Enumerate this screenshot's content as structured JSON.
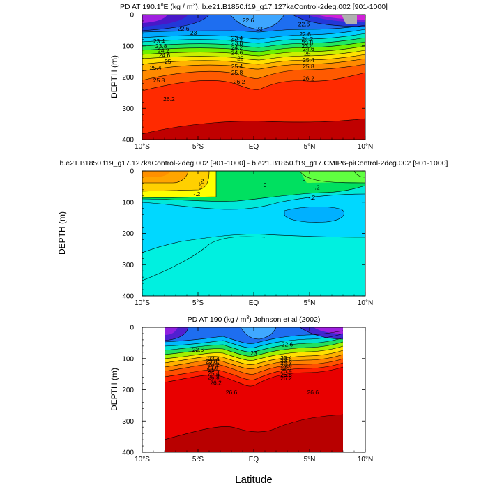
{
  "figure": {
    "xlabel_bottom": "Latitude"
  },
  "chart_data": [
    {
      "type": "heatmap",
      "title_prefix": "PD AT 190.1",
      "title_superscript_deg": "o",
      "title_suffix": "E (kg / m",
      "title_sup_exp": "3",
      "title_tail": "), b.e21.B1850.f19_g17.127kaControl-2deg.002 [901-1000]",
      "ylabel": "DEPTH (m)",
      "xlim": [
        -10,
        10
      ],
      "ylim": [
        0,
        400
      ],
      "y_inverted": true,
      "xticks": [
        -10,
        -5,
        0,
        5,
        10
      ],
      "xtick_labels": [
        "10°S",
        "5°S",
        "EQ",
        "5°N",
        "10°N"
      ],
      "yticks": [
        0,
        100,
        200,
        300,
        400
      ],
      "ytick_labels": [
        "0",
        "100",
        "200",
        "300",
        "400"
      ],
      "contour_levels": [
        20.8,
        21.2,
        21.6,
        22.0,
        22.6,
        23.0,
        23.4,
        23.8,
        24.2,
        24.6,
        25.0,
        25.4,
        25.8,
        26.2,
        26.6
      ],
      "contour_labels": [
        {
          "lat": -0.5,
          "depth": 18,
          "text": "22.6"
        },
        {
          "lat": 0.5,
          "depth": 45,
          "text": "23"
        },
        {
          "lat": -6.3,
          "depth": 45,
          "text": "22.6"
        },
        {
          "lat": -8.5,
          "depth": 85,
          "text": "23.4"
        },
        {
          "lat": -8.3,
          "depth": 100,
          "text": "23.8"
        },
        {
          "lat": -8.1,
          "depth": 115,
          "text": "24.2"
        },
        {
          "lat": -8.0,
          "depth": 130,
          "text": "24.6"
        },
        {
          "lat": -5.4,
          "depth": 58,
          "text": "23"
        },
        {
          "lat": -7.7,
          "depth": 150,
          "text": "25"
        },
        {
          "lat": -8.8,
          "depth": 170,
          "text": "25.4"
        },
        {
          "lat": -8.5,
          "depth": 210,
          "text": "25.8"
        },
        {
          "lat": -7.6,
          "depth": 270,
          "text": "26.2"
        },
        {
          "lat": -1.5,
          "depth": 75,
          "text": "23.4"
        },
        {
          "lat": -1.5,
          "depth": 90,
          "text": "23.8"
        },
        {
          "lat": -1.5,
          "depth": 105,
          "text": "24.2"
        },
        {
          "lat": -1.5,
          "depth": 122,
          "text": "24.6"
        },
        {
          "lat": -1.2,
          "depth": 140,
          "text": "25"
        },
        {
          "lat": -1.5,
          "depth": 165,
          "text": "25.4"
        },
        {
          "lat": -1.5,
          "depth": 185,
          "text": "25.8"
        },
        {
          "lat": -1.3,
          "depth": 215,
          "text": "26.2"
        },
        {
          "lat": 4.8,
          "depth": 100,
          "text": "23.4"
        },
        {
          "lat": 4.8,
          "depth": 90,
          "text": "23.8"
        },
        {
          "lat": 4.8,
          "depth": 78,
          "text": "24.2"
        },
        {
          "lat": 4.6,
          "depth": 63,
          "text": "22.6"
        },
        {
          "lat": 4.9,
          "depth": 110,
          "text": "24.6"
        },
        {
          "lat": 4.8,
          "depth": 125,
          "text": "25"
        },
        {
          "lat": 4.9,
          "depth": 145,
          "text": "25.4"
        },
        {
          "lat": 4.9,
          "depth": 165,
          "text": "25.8"
        },
        {
          "lat": 4.9,
          "depth": 205,
          "text": "26.2"
        },
        {
          "lat": 4.5,
          "depth": 30,
          "text": "22.6"
        }
      ]
    },
    {
      "type": "heatmap",
      "title": "b.e21.B1850.f19_g17.127kaControl-2deg.002 [901-1000] - b.e21.B1850.f19_g17.CMIP6-piControl-2deg.002 [901-1000]",
      "ylabel": "DEPTH (m)",
      "xlim": [
        -10,
        10
      ],
      "ylim": [
        0,
        400
      ],
      "y_inverted": true,
      "xticks": [
        -10,
        -5,
        0,
        5,
        10
      ],
      "xtick_labels": [
        "10°S",
        "5°S",
        "EQ",
        "5°N",
        "10°N"
      ],
      "yticks": [
        0,
        100,
        200,
        300,
        400
      ],
      "ytick_labels": [
        "0",
        "100",
        "200",
        "300",
        "400"
      ],
      "contour_levels": [
        -0.6,
        -0.4,
        -0.2,
        0,
        0.2,
        0.4,
        0.6
      ],
      "contour_labels": [
        {
          "lat": -4.7,
          "depth": 32,
          "text": ".2"
        },
        {
          "lat": -4.8,
          "depth": 50,
          "text": "0"
        },
        {
          "lat": 1.0,
          "depth": 45,
          "text": "0"
        },
        {
          "lat": 4.5,
          "depth": 36,
          "text": "0"
        },
        {
          "lat": 5.6,
          "depth": 53,
          "text": "-.2"
        },
        {
          "lat": -5.1,
          "depth": 74,
          "text": "-.2"
        },
        {
          "lat": 5.2,
          "depth": 85,
          "text": "-.2"
        }
      ]
    },
    {
      "type": "heatmap",
      "title_prefix": "PD AT 190 (kg / m",
      "title_sup_exp": "3",
      "title_tail": ") Johnson et al (2002)",
      "ylabel": "DEPTH (m)",
      "xlim": [
        -10,
        10
      ],
      "ylim": [
        0,
        400
      ],
      "y_inverted": true,
      "data_lat_range": [
        -8,
        8
      ],
      "xticks": [
        -10,
        -5,
        0,
        5,
        10
      ],
      "xtick_labels": [
        "10°S",
        "5°S",
        "EQ",
        "5°N",
        "10°N"
      ],
      "yticks": [
        0,
        100,
        200,
        300,
        400
      ],
      "ytick_labels": [
        "0",
        "100",
        "200",
        "300",
        "400"
      ],
      "contour_levels": [
        20.6,
        21.0,
        21.4,
        21.8,
        22.2,
        22.6,
        23.0,
        23.4,
        23.8,
        24.2,
        24.6,
        25.0,
        25.4,
        25.8,
        26.2,
        26.6
      ],
      "contour_labels": [
        {
          "lat": 3.0,
          "depth": 55,
          "text": "22.6"
        },
        {
          "lat": -5.0,
          "depth": 72,
          "text": "22.6"
        },
        {
          "lat": 0.0,
          "depth": 83,
          "text": "23"
        },
        {
          "lat": -3.6,
          "depth": 100,
          "text": "23.4"
        },
        {
          "lat": -3.8,
          "depth": 110,
          "text": "23.8"
        },
        {
          "lat": -3.6,
          "depth": 120,
          "text": "24.2"
        },
        {
          "lat": -3.7,
          "depth": 128,
          "text": "24.6"
        },
        {
          "lat": -3.8,
          "depth": 136,
          "text": "25"
        },
        {
          "lat": -3.6,
          "depth": 147,
          "text": "25.4"
        },
        {
          "lat": -3.6,
          "depth": 160,
          "text": "25.8"
        },
        {
          "lat": -3.4,
          "depth": 178,
          "text": "26.2"
        },
        {
          "lat": 2.9,
          "depth": 98,
          "text": "23.4"
        },
        {
          "lat": 2.9,
          "depth": 106,
          "text": "23.8"
        },
        {
          "lat": 2.9,
          "depth": 114,
          "text": "24.2"
        },
        {
          "lat": 2.9,
          "depth": 122,
          "text": "24.6"
        },
        {
          "lat": 2.9,
          "depth": 130,
          "text": "25"
        },
        {
          "lat": 2.9,
          "depth": 140,
          "text": "25.4"
        },
        {
          "lat": 2.9,
          "depth": 152,
          "text": "25.8"
        },
        {
          "lat": 2.9,
          "depth": 163,
          "text": "26.2"
        },
        {
          "lat": -2.0,
          "depth": 208,
          "text": "26.6"
        },
        {
          "lat": 5.3,
          "depth": 208,
          "text": "26.6"
        }
      ]
    }
  ]
}
